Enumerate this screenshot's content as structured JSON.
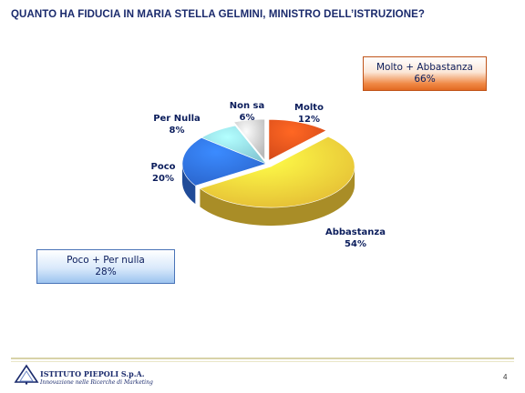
{
  "title": "QUANTO HA FIDUCIA IN MARIA STELLA GELMINI, MINISTRO DELL’ISTRUZIONE?",
  "summary_positive": {
    "label": "Molto + Abbastanza",
    "value": "66%",
    "color": "#ef7f3a"
  },
  "summary_negative": {
    "label": "Poco + Per nulla",
    "value": "28%",
    "color": "#9cc3ef"
  },
  "chart_data": {
    "type": "pie",
    "title": "QUANTO HA FIDUCIA IN MARIA STELLA GELMINI, MINISTRO DELL’ISTRUZIONE?",
    "slices": [
      {
        "label": "Molto",
        "value": 12,
        "value_label": "12%",
        "color": "#e8521c",
        "exploded": true
      },
      {
        "label": "Abbastanza",
        "value": 54,
        "value_label": "54%",
        "color": "#f9cf3a",
        "exploded": true
      },
      {
        "label": "Poco",
        "value": 20,
        "value_label": "20%",
        "color": "#2f6fe0",
        "exploded": false
      },
      {
        "label": "Per Nulla",
        "value": 8,
        "value_label": "8%",
        "color": "#8fd8e6",
        "exploded": false
      },
      {
        "label": "Non sa",
        "value": 6,
        "value_label": "6%",
        "color": "#c9c9c9",
        "exploded": true
      }
    ],
    "legend": "none"
  },
  "footer": {
    "company": "ISTITUTO PIEPOLI S.p.A.",
    "tagline": "Innovazione nelle Ricerche di Marketing",
    "page_number": "4"
  }
}
